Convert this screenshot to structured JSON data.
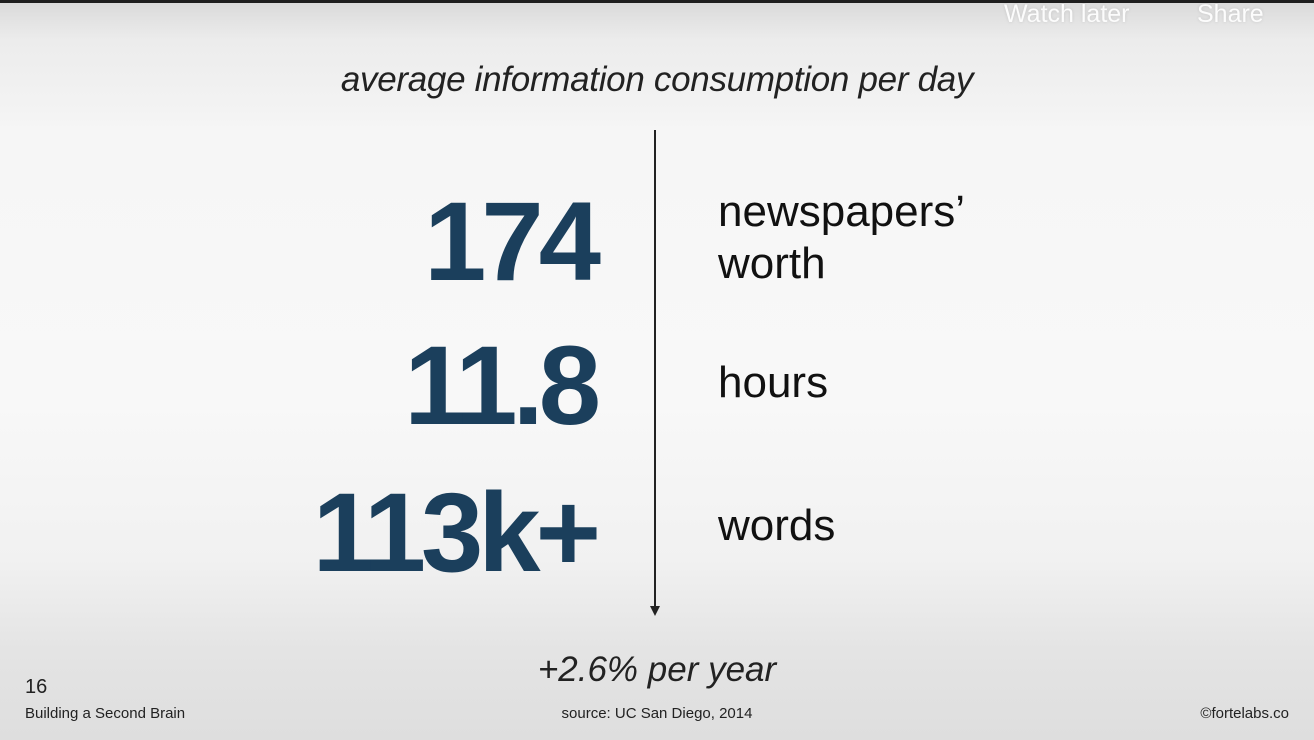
{
  "overlay": {
    "watch_later": "Watch later",
    "share": "Share"
  },
  "slide": {
    "title": "average information consumption per day",
    "stats": [
      {
        "value": "174",
        "label": "newspapers’ worth"
      },
      {
        "value": "11.8",
        "label": "hours"
      },
      {
        "value": "113k+",
        "label": "words"
      }
    ],
    "growth": "+2.6% per year",
    "footer": {
      "slide_number": "16",
      "course": "Building a Second Brain",
      "source": "source: UC San Diego, 2014",
      "copyright": "©fortelabs.co"
    }
  },
  "colors": {
    "stat_number": "#1b3f5c",
    "text": "#222222",
    "overlay_text": "#ffffff"
  }
}
